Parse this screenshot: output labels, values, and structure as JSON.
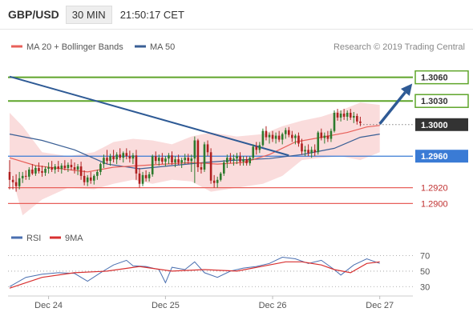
{
  "header": {
    "pair": "GBP/USD",
    "timeframe": "30 MIN",
    "time": "21:50:17 CET"
  },
  "legend": {
    "ma20": "MA 20 + Bollinger Bands",
    "ma50": "MA 50",
    "credit": "Research © 2019 Trading Central"
  },
  "rsi_legend": {
    "rsi": "RSI",
    "ma9": "9MA"
  },
  "colors": {
    "up": "#2d7a2d",
    "down": "#b02020",
    "ma20": "#e8605a",
    "ma50": "#3a5f95",
    "band": "#fadcdc",
    "resistance": "#5fa52a",
    "support": "#e8605a",
    "pivot": "#3a7bd5",
    "trend": "#2e5a95",
    "current": "#333333"
  },
  "chart_data": {
    "type": "candlestick",
    "price_range": [
      1.2875,
      1.3085
    ],
    "x_labels": [
      {
        "text": "Dec 24",
        "index": 12
      },
      {
        "text": "Dec 25",
        "index": 48
      },
      {
        "text": "Dec 26",
        "index": 81
      },
      {
        "text": "Dec 27",
        "index": 114
      }
    ],
    "levels": [
      {
        "label": "1.3060",
        "value": 1.306,
        "kind": "resistance"
      },
      {
        "label": "1.3030",
        "value": 1.303,
        "kind": "resistance"
      },
      {
        "label": "1.3000",
        "value": 1.3,
        "kind": "current"
      },
      {
        "label": "1.2960",
        "value": 1.296,
        "kind": "pivot"
      },
      {
        "label": "1.2920",
        "value": 1.292,
        "kind": "support"
      },
      {
        "label": "1.2900",
        "value": 1.29,
        "kind": "support"
      }
    ],
    "trendline": {
      "from": [
        0,
        1.3061
      ],
      "to": [
        86,
        1.2961
      ]
    },
    "forecast_arrow": {
      "from": [
        114,
        1.3001
      ],
      "to": [
        124,
        1.3052
      ]
    },
    "candles": [
      [
        1.294,
        1.2955,
        1.2918,
        1.293
      ],
      [
        1.293,
        1.2935,
        1.2918,
        1.2927
      ],
      [
        1.2927,
        1.2937,
        1.2915,
        1.2922
      ],
      [
        1.2922,
        1.294,
        1.2918,
        1.2932
      ],
      [
        1.2932,
        1.294,
        1.2926,
        1.2935
      ],
      [
        1.2935,
        1.2942,
        1.293,
        1.2934
      ],
      [
        1.2934,
        1.2946,
        1.293,
        1.2943
      ],
      [
        1.2943,
        1.295,
        1.2936,
        1.2938
      ],
      [
        1.2938,
        1.2948,
        1.2935,
        1.2945
      ],
      [
        1.2945,
        1.2952,
        1.2938,
        1.2941
      ],
      [
        1.2941,
        1.2948,
        1.2934,
        1.2939
      ],
      [
        1.2939,
        1.2947,
        1.2935,
        1.2944
      ],
      [
        1.2944,
        1.2952,
        1.2938,
        1.2946
      ],
      [
        1.2946,
        1.2954,
        1.294,
        1.2943
      ],
      [
        1.2943,
        1.295,
        1.2938,
        1.2947
      ],
      [
        1.2947,
        1.2954,
        1.294,
        1.2944
      ],
      [
        1.2944,
        1.2951,
        1.2938,
        1.2948
      ],
      [
        1.2948,
        1.2955,
        1.2942,
        1.2945
      ],
      [
        1.2945,
        1.2952,
        1.294,
        1.2949
      ],
      [
        1.2949,
        1.2956,
        1.2942,
        1.2946
      ],
      [
        1.2946,
        1.2952,
        1.2938,
        1.2943
      ],
      [
        1.2943,
        1.295,
        1.2936,
        1.2947
      ],
      [
        1.2947,
        1.2953,
        1.293,
        1.2935
      ],
      [
        1.2935,
        1.2942,
        1.2923,
        1.2927
      ],
      [
        1.2927,
        1.2936,
        1.2922,
        1.2933
      ],
      [
        1.2933,
        1.294,
        1.2925,
        1.2929
      ],
      [
        1.2929,
        1.2937,
        1.2924,
        1.2935
      ],
      [
        1.2935,
        1.2943,
        1.293,
        1.294
      ],
      [
        1.294,
        1.2952,
        1.2936,
        1.295
      ],
      [
        1.295,
        1.2962,
        1.2945,
        1.2958
      ],
      [
        1.2958,
        1.2968,
        1.295,
        1.2954
      ],
      [
        1.2954,
        1.2963,
        1.2948,
        1.296
      ],
      [
        1.296,
        1.2968,
        1.2952,
        1.2956
      ],
      [
        1.2956,
        1.2965,
        1.295,
        1.2962
      ],
      [
        1.2962,
        1.297,
        1.2955,
        1.2958
      ],
      [
        1.2958,
        1.2966,
        1.2952,
        1.2964
      ],
      [
        1.2964,
        1.297,
        1.2956,
        1.296
      ],
      [
        1.296,
        1.2967,
        1.2952,
        1.2957
      ],
      [
        1.2957,
        1.2964,
        1.295,
        1.2961
      ],
      [
        1.2961,
        1.2968,
        1.293,
        1.2938
      ],
      [
        1.2938,
        1.2945,
        1.292,
        1.2925
      ],
      [
        1.2925,
        1.294,
        1.2922,
        1.2936
      ],
      [
        1.2936,
        1.2942,
        1.2928,
        1.2932
      ],
      [
        1.2932,
        1.294,
        1.2928,
        1.2937
      ],
      [
        1.2937,
        1.2962,
        1.2934,
        1.296
      ],
      [
        1.296,
        1.2966,
        1.295,
        1.2954
      ],
      [
        1.2954,
        1.2962,
        1.2948,
        1.2958
      ],
      [
        1.2958,
        1.2964,
        1.295,
        1.2953
      ],
      [
        1.2953,
        1.296,
        1.2947,
        1.2957
      ],
      [
        1.2957,
        1.2964,
        1.295,
        1.2961
      ],
      [
        1.2961,
        1.2966,
        1.2949,
        1.2952
      ],
      [
        1.2952,
        1.296,
        1.2946,
        1.2956
      ],
      [
        1.2956,
        1.2962,
        1.2949,
        1.2952
      ],
      [
        1.2952,
        1.2958,
        1.2945,
        1.2955
      ],
      [
        1.2955,
        1.2963,
        1.295,
        1.2958
      ],
      [
        1.2958,
        1.2963,
        1.295,
        1.2954
      ],
      [
        1.2954,
        1.2962,
        1.294,
        1.2957
      ],
      [
        1.2957,
        1.2985,
        1.2926,
        1.298
      ],
      [
        1.298,
        1.2982,
        1.294,
        1.2946
      ],
      [
        1.2946,
        1.2952,
        1.2938,
        1.2943
      ],
      [
        1.2943,
        1.2978,
        1.294,
        1.2975
      ],
      [
        1.2975,
        1.298,
        1.296,
        1.2965
      ],
      [
        1.2965,
        1.297,
        1.2925,
        1.2929
      ],
      [
        1.2929,
        1.2936,
        1.292,
        1.2926
      ],
      [
        1.2926,
        1.2934,
        1.292,
        1.293
      ],
      [
        1.293,
        1.294,
        1.2928,
        1.2938
      ],
      [
        1.2938,
        1.2955,
        1.2935,
        1.2952
      ],
      [
        1.2952,
        1.2962,
        1.2945,
        1.2958
      ],
      [
        1.2958,
        1.2964,
        1.2951,
        1.2955
      ],
      [
        1.2955,
        1.2962,
        1.2948,
        1.2957
      ],
      [
        1.2957,
        1.2964,
        1.295,
        1.296
      ],
      [
        1.296,
        1.2965,
        1.2948,
        1.2953
      ],
      [
        1.2953,
        1.296,
        1.2948,
        1.2956
      ],
      [
        1.2956,
        1.296,
        1.2948,
        1.2951
      ],
      [
        1.2951,
        1.296,
        1.2948,
        1.2958
      ],
      [
        1.2958,
        1.2975,
        1.2955,
        1.2972
      ],
      [
        1.2972,
        1.2978,
        1.2962,
        1.2968
      ],
      [
        1.2968,
        1.2978,
        1.2964,
        1.2974
      ],
      [
        1.2974,
        1.2995,
        1.2972,
        1.2992
      ],
      [
        1.2992,
        1.2998,
        1.298,
        1.2984
      ],
      [
        1.2984,
        1.299,
        1.2976,
        1.2987
      ],
      [
        1.2987,
        1.2992,
        1.2978,
        1.2982
      ],
      [
        1.2982,
        1.299,
        1.2976,
        1.2986
      ],
      [
        1.2986,
        1.2992,
        1.2978,
        1.2981
      ],
      [
        1.2981,
        1.299,
        1.2975,
        1.2988
      ],
      [
        1.2988,
        1.2996,
        1.2982,
        1.2993
      ],
      [
        1.2993,
        1.2997,
        1.2984,
        1.2987
      ],
      [
        1.2987,
        1.2992,
        1.2978,
        1.2983
      ],
      [
        1.2983,
        1.2988,
        1.2975,
        1.2986
      ],
      [
        1.2986,
        1.299,
        1.2972,
        1.2976
      ],
      [
        1.2976,
        1.2982,
        1.2962,
        1.2966
      ],
      [
        1.2966,
        1.2973,
        1.296,
        1.2968
      ],
      [
        1.2968,
        1.2975,
        1.296,
        1.2964
      ],
      [
        1.2964,
        1.2972,
        1.2958,
        1.2968
      ],
      [
        1.2968,
        1.2975,
        1.296,
        1.2965
      ],
      [
        1.2965,
        1.2992,
        1.2962,
        1.299
      ],
      [
        1.299,
        1.2995,
        1.298,
        1.2983
      ],
      [
        1.2983,
        1.299,
        1.2976,
        1.2986
      ],
      [
        1.2986,
        1.2992,
        1.2978,
        1.2982
      ],
      [
        1.2982,
        1.2995,
        1.2978,
        1.2992
      ],
      [
        1.2992,
        1.3018,
        1.299,
        1.3015
      ],
      [
        1.3015,
        1.302,
        1.3005,
        1.3009
      ],
      [
        1.3009,
        1.3018,
        1.3004,
        1.3014
      ],
      [
        1.3014,
        1.302,
        1.3006,
        1.301
      ],
      [
        1.301,
        1.3018,
        1.3005,
        1.3015
      ],
      [
        1.3015,
        1.302,
        1.3006,
        1.3009
      ],
      [
        1.3009,
        1.3016,
        1.3002,
        1.3011
      ],
      [
        1.3011,
        1.3014,
        1.3,
        1.3004
      ],
      [
        1.3004,
        1.301,
        1.2998,
        1.3002
      ]
    ],
    "ma20": [
      [
        0,
        1.2958
      ],
      [
        8,
        1.2948
      ],
      [
        16,
        1.2944
      ],
      [
        24,
        1.294
      ],
      [
        32,
        1.2946
      ],
      [
        40,
        1.2948
      ],
      [
        48,
        1.295
      ],
      [
        56,
        1.2952
      ],
      [
        64,
        1.295
      ],
      [
        72,
        1.2952
      ],
      [
        80,
        1.2962
      ],
      [
        88,
        1.2978
      ],
      [
        96,
        1.2984
      ],
      [
        104,
        1.299
      ],
      [
        110,
        1.2997
      ],
      [
        114,
        1.2999
      ]
    ],
    "ma50": [
      [
        0,
        1.2988
      ],
      [
        10,
        1.298
      ],
      [
        20,
        1.2968
      ],
      [
        30,
        1.295
      ],
      [
        40,
        1.2944
      ],
      [
        50,
        1.2948
      ],
      [
        60,
        1.2952
      ],
      [
        70,
        1.2955
      ],
      [
        80,
        1.2957
      ],
      [
        90,
        1.2962
      ],
      [
        100,
        1.297
      ],
      [
        108,
        1.2984
      ],
      [
        114,
        1.2988
      ]
    ],
    "bollinger_upper": [
      [
        0,
        1.3015
      ],
      [
        4,
        1.2998
      ],
      [
        10,
        1.2965
      ],
      [
        18,
        1.296
      ],
      [
        26,
        1.2965
      ],
      [
        32,
        1.2978
      ],
      [
        38,
        1.2982
      ],
      [
        44,
        1.298
      ],
      [
        50,
        1.2975
      ],
      [
        56,
        1.2985
      ],
      [
        62,
        1.299
      ],
      [
        70,
        1.2985
      ],
      [
        78,
        1.2988
      ],
      [
        84,
        1.2998
      ],
      [
        90,
        1.3005
      ],
      [
        96,
        1.301
      ],
      [
        102,
        1.3018
      ],
      [
        108,
        1.3028
      ],
      [
        114,
        1.3025
      ]
    ],
    "bollinger_lower": [
      [
        0,
        1.2945
      ],
      [
        4,
        1.2885
      ],
      [
        10,
        1.2905
      ],
      [
        18,
        1.292
      ],
      [
        26,
        1.2918
      ],
      [
        32,
        1.2925
      ],
      [
        38,
        1.293
      ],
      [
        44,
        1.2925
      ],
      [
        50,
        1.293
      ],
      [
        56,
        1.2928
      ],
      [
        62,
        1.2915
      ],
      [
        70,
        1.292
      ],
      [
        78,
        1.2925
      ],
      [
        84,
        1.2935
      ],
      [
        90,
        1.2955
      ],
      [
        96,
        1.2958
      ],
      [
        102,
        1.296
      ],
      [
        108,
        1.2955
      ],
      [
        114,
        1.2965
      ]
    ],
    "rsi_axis": {
      "ticks": [
        30,
        50,
        70
      ],
      "range": [
        22,
        82
      ]
    },
    "rsi": [
      [
        0,
        30
      ],
      [
        5,
        42
      ],
      [
        10,
        46
      ],
      [
        15,
        48
      ],
      [
        20,
        47
      ],
      [
        24,
        37
      ],
      [
        28,
        48
      ],
      [
        32,
        58
      ],
      [
        36,
        64
      ],
      [
        38,
        57
      ],
      [
        42,
        56
      ],
      [
        46,
        52
      ],
      [
        48,
        35
      ],
      [
        50,
        55
      ],
      [
        54,
        52
      ],
      [
        57,
        62
      ],
      [
        60,
        48
      ],
      [
        64,
        42
      ],
      [
        68,
        50
      ],
      [
        72,
        54
      ],
      [
        76,
        56
      ],
      [
        80,
        60
      ],
      [
        84,
        68
      ],
      [
        88,
        66
      ],
      [
        92,
        60
      ],
      [
        96,
        64
      ],
      [
        100,
        52
      ],
      [
        102,
        45
      ],
      [
        106,
        58
      ],
      [
        110,
        66
      ],
      [
        114,
        60
      ]
    ],
    "rsi_ma9": [
      [
        0,
        28
      ],
      [
        10,
        42
      ],
      [
        20,
        48
      ],
      [
        30,
        50
      ],
      [
        40,
        56
      ],
      [
        50,
        50
      ],
      [
        60,
        52
      ],
      [
        70,
        50
      ],
      [
        80,
        58
      ],
      [
        85,
        62
      ],
      [
        90,
        62
      ],
      [
        96,
        58
      ],
      [
        100,
        52
      ],
      [
        105,
        48
      ],
      [
        110,
        60
      ],
      [
        114,
        62
      ]
    ]
  }
}
